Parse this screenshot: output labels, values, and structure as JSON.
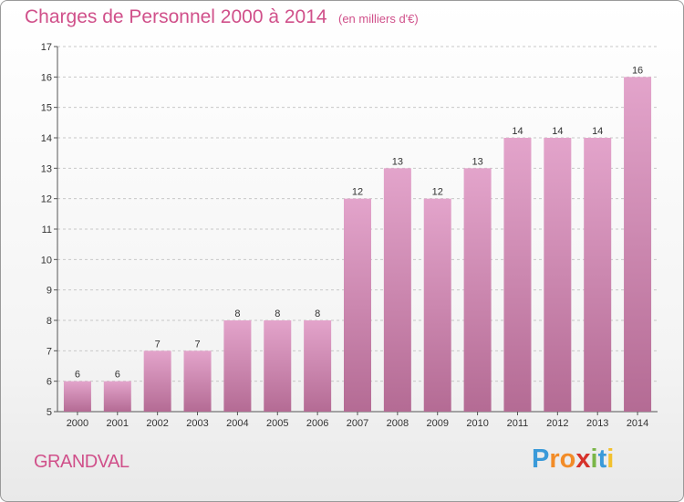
{
  "chart_data": {
    "type": "bar",
    "title": "Charges de Personnel 2000 à 2014",
    "subtitle": "(en milliers d'€)",
    "categories": [
      "2000",
      "2001",
      "2002",
      "2003",
      "2004",
      "2005",
      "2006",
      "2007",
      "2008",
      "2009",
      "2010",
      "2011",
      "2012",
      "2013",
      "2014"
    ],
    "values": [
      6,
      6,
      7,
      7,
      8,
      8,
      8,
      12,
      13,
      12,
      13,
      14,
      14,
      14,
      16
    ],
    "ylim": [
      5,
      17
    ],
    "yticks": [
      5,
      6,
      7,
      8,
      9,
      10,
      11,
      12,
      13,
      14,
      15,
      16,
      17
    ],
    "grid": true,
    "colors": {
      "bar_top": "#e3a4cb",
      "bar_bottom": "#b46b94",
      "text_accent": "#d0508a"
    }
  },
  "footer": {
    "town": "GRANDVAL",
    "logo_letters": [
      "P",
      "r",
      "o",
      "x",
      "i",
      "t",
      "i"
    ],
    "logo_colors": [
      "#3a9ad9",
      "#f28c28",
      "#f28c28",
      "#d6322b",
      "#7ab648",
      "#3a9ad9",
      "#f2c12e"
    ]
  }
}
